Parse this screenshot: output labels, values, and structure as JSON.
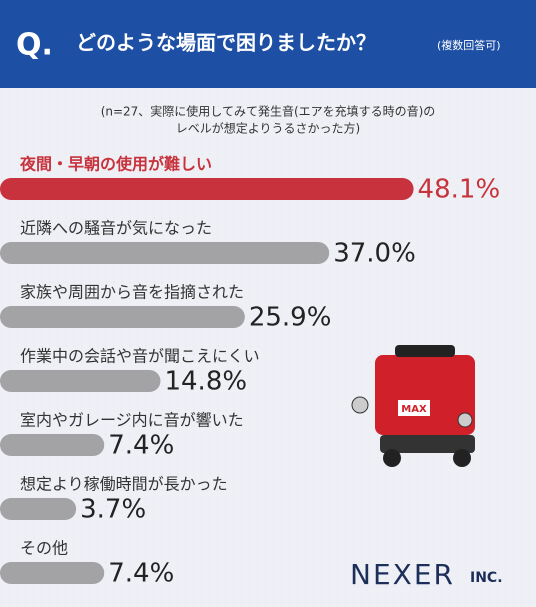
{
  "header": {
    "mark": "Q.",
    "question": "どのような場面で困りましたか？",
    "note": "(複数回答可)"
  },
  "chart_data": {
    "type": "bar",
    "orientation": "horizontal",
    "subtitle": [
      "(n=27、実際に使用してみて発生音(エアを充填する時の音)の",
      "レベルが想定よりうるさかった方)"
    ],
    "categories": [
      "夜間・早朝の使用が難しい",
      "近隣への騒音が気になった",
      "家族や周囲から音を指摘された",
      "作業中の会話や音が聞こえにくい",
      "室内やガレージ内に音が響いた",
      "想定より稼働時間が長かった",
      "その他"
    ],
    "values": [
      48.1,
      37.0,
      25.9,
      14.8,
      7.4,
      3.7,
      7.4
    ],
    "value_labels": [
      "48.1%",
      "37.0%",
      "25.9%",
      "14.8%",
      "7.4%",
      "3.7%",
      "7.4%"
    ],
    "colors": [
      "#c8323c",
      "#a3a3a6",
      "#a3a3a6",
      "#a3a3a6",
      "#a3a3a6",
      "#a3a3a6",
      "#a3a3a6"
    ]
  },
  "footer": {
    "logo": "NEXER",
    "suffix": "INC."
  }
}
